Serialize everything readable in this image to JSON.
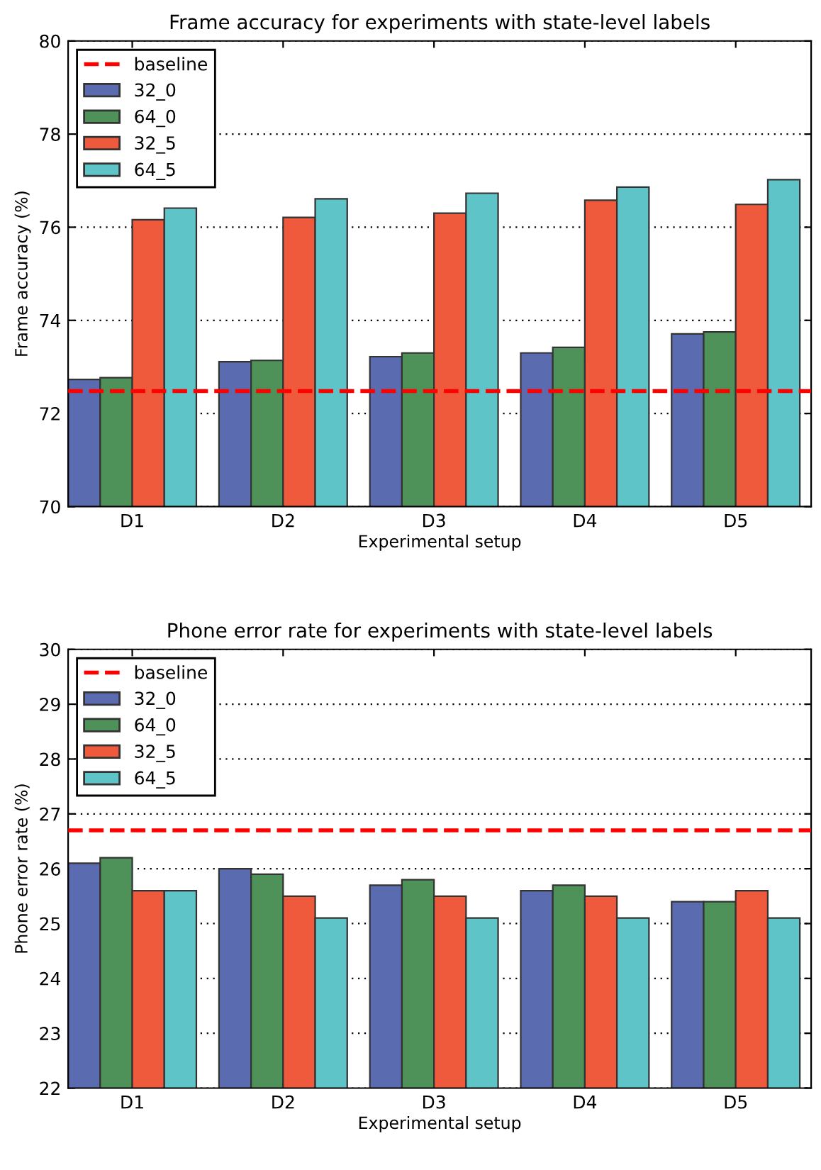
{
  "chart_data": [
    {
      "type": "bar",
      "title": "Frame accuracy for experiments with state-level labels",
      "xlabel": "Experimental setup",
      "ylabel": "Frame accuracy (%)",
      "categories": [
        "D1",
        "D2",
        "D3",
        "D4",
        "D5"
      ],
      "series": [
        {
          "name": "32_0",
          "color": "#5b6bb0",
          "values": [
            72.73,
            73.11,
            73.22,
            73.3,
            73.71
          ]
        },
        {
          "name": "64_0",
          "color": "#4e9159",
          "values": [
            72.77,
            73.14,
            73.3,
            73.42,
            73.75
          ]
        },
        {
          "name": "32_5",
          "color": "#f05a3c",
          "values": [
            76.16,
            76.21,
            76.3,
            76.58,
            76.49
          ]
        },
        {
          "name": "64_5",
          "color": "#5ec4c7",
          "values": [
            76.41,
            76.61,
            76.73,
            76.86,
            77.02
          ]
        }
      ],
      "ref_lines": [
        {
          "axis": "y",
          "value": 72.48,
          "label": "baseline",
          "color": "#ff0000",
          "line_style": "dashed"
        }
      ],
      "ylim": [
        70,
        80
      ],
      "yticks": [
        70,
        72,
        74,
        76,
        78,
        80
      ],
      "grid": "y",
      "legend": "top left"
    },
    {
      "type": "bar",
      "title": "Phone error rate for experiments with state-level labels",
      "xlabel": "Experimental setup",
      "ylabel": "Phone error rate (%)",
      "categories": [
        "D1",
        "D2",
        "D3",
        "D4",
        "D5"
      ],
      "series": [
        {
          "name": "32_0",
          "color": "#5b6bb0",
          "values": [
            26.1,
            26.0,
            25.7,
            25.6,
            25.4
          ]
        },
        {
          "name": "64_0",
          "color": "#4e9159",
          "values": [
            26.2,
            25.9,
            25.8,
            25.7,
            25.4
          ]
        },
        {
          "name": "32_5",
          "color": "#f05a3c",
          "values": [
            25.6,
            25.5,
            25.5,
            25.5,
            25.6
          ]
        },
        {
          "name": "64_5",
          "color": "#5ec4c7",
          "values": [
            25.6,
            25.1,
            25.1,
            25.1,
            25.1
          ]
        }
      ],
      "ref_lines": [
        {
          "axis": "y",
          "value": 26.7,
          "label": "baseline",
          "color": "#ff0000",
          "line_style": "dashed"
        }
      ],
      "ylim": [
        22,
        30
      ],
      "yticks": [
        22,
        23,
        24,
        25,
        26,
        27,
        28,
        29,
        30
      ],
      "grid": "y",
      "legend": "top left"
    }
  ]
}
